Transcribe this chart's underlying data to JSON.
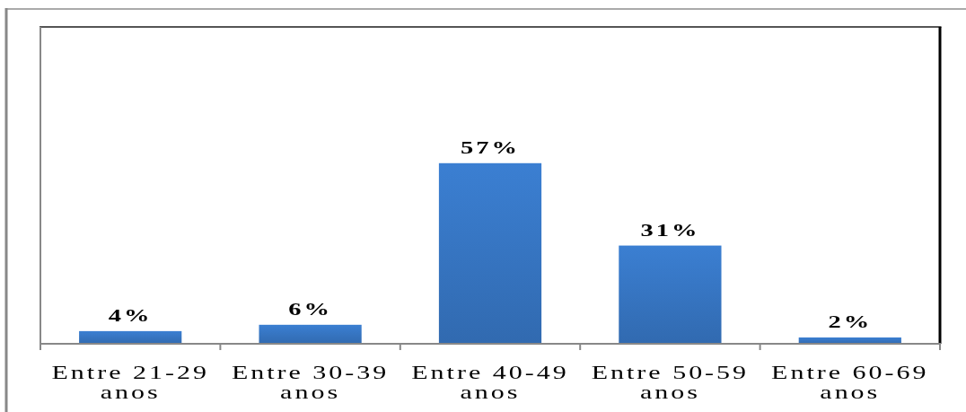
{
  "chart_data": {
    "type": "bar",
    "categories": [
      "Entre 21-29 anos",
      "Entre 30-39 anos",
      "Entre 40-49 anos",
      "Entre 50-59 anos",
      "Entre 60-69 anos"
    ],
    "values": [
      4,
      6,
      57,
      31,
      2
    ],
    "color": "#3878c7",
    "value_labels": [
      "4%",
      "6%",
      "57%",
      "31%",
      "2%"
    ],
    "ylim": [
      0,
      100
    ],
    "tick_labels": "x"
  }
}
